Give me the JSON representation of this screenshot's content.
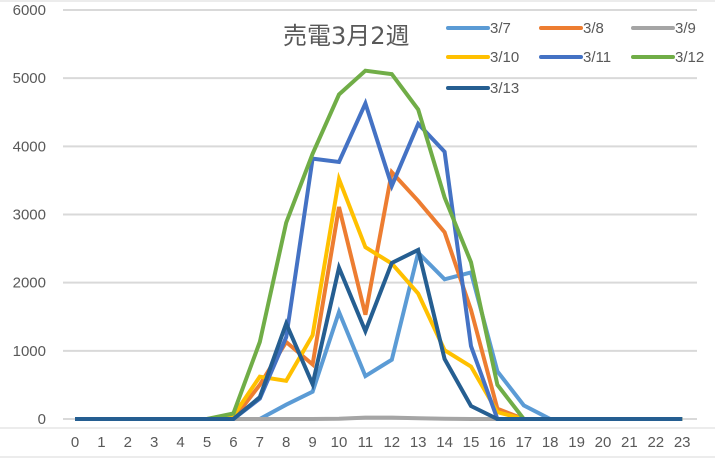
{
  "chart_data": {
    "type": "line",
    "title": "売電3月2週",
    "xlabel": "",
    "ylabel": "",
    "ylim": [
      0,
      6000
    ],
    "yticks": [
      0,
      1000,
      2000,
      3000,
      4000,
      5000,
      6000
    ],
    "grid": true,
    "legend_position": "top-right",
    "categories": [
      "0",
      "1",
      "2",
      "3",
      "4",
      "5",
      "6",
      "7",
      "8",
      "9",
      "10",
      "11",
      "12",
      "13",
      "14",
      "15",
      "16",
      "17",
      "18",
      "19",
      "20",
      "21",
      "22",
      "23"
    ],
    "series": [
      {
        "name": "3/7",
        "color": "#5B9BD5",
        "values": [
          0,
          0,
          0,
          0,
          0,
          0,
          0,
          0,
          210,
          400,
          1570,
          630,
          870,
          2440,
          2050,
          2150,
          700,
          200,
          0,
          0,
          0,
          0,
          0,
          0
        ]
      },
      {
        "name": "3/8",
        "color": "#ED7D31",
        "values": [
          0,
          0,
          0,
          0,
          0,
          0,
          0,
          500,
          1130,
          800,
          3110,
          1530,
          3620,
          3200,
          2740,
          1600,
          150,
          0,
          0,
          0,
          0,
          0,
          0,
          0
        ]
      },
      {
        "name": "3/9",
        "color": "#A5A5A5",
        "values": [
          0,
          0,
          0,
          0,
          0,
          0,
          0,
          0,
          0,
          0,
          5,
          20,
          20,
          10,
          5,
          0,
          0,
          0,
          0,
          0,
          0,
          0,
          0,
          0
        ]
      },
      {
        "name": "3/10",
        "color": "#FFC000",
        "values": [
          0,
          0,
          0,
          0,
          0,
          0,
          50,
          620,
          560,
          1230,
          3520,
          2520,
          2280,
          1840,
          1010,
          770,
          100,
          0,
          0,
          0,
          0,
          0,
          0,
          0
        ]
      },
      {
        "name": "3/11",
        "color": "#4472C4",
        "values": [
          0,
          0,
          0,
          0,
          0,
          0,
          0,
          300,
          1200,
          3820,
          3770,
          4630,
          3420,
          4330,
          3920,
          1070,
          0,
          0,
          0,
          0,
          0,
          0,
          0,
          0
        ]
      },
      {
        "name": "3/12",
        "color": "#70AD47",
        "values": [
          0,
          0,
          0,
          0,
          0,
          0,
          80,
          1130,
          2880,
          3890,
          4760,
          5110,
          5060,
          4540,
          3250,
          2300,
          500,
          0,
          0,
          0,
          0,
          0,
          0,
          0
        ]
      },
      {
        "name": "3/13",
        "color": "#255E91",
        "values": [
          0,
          0,
          0,
          0,
          0,
          0,
          0,
          320,
          1400,
          510,
          2220,
          1290,
          2290,
          2480,
          880,
          190,
          0,
          0,
          0,
          0,
          0,
          0,
          0,
          0
        ]
      }
    ]
  },
  "colors": {
    "grid": "#D9D9D9",
    "text": "#595959",
    "background": "#FFFFFF"
  }
}
